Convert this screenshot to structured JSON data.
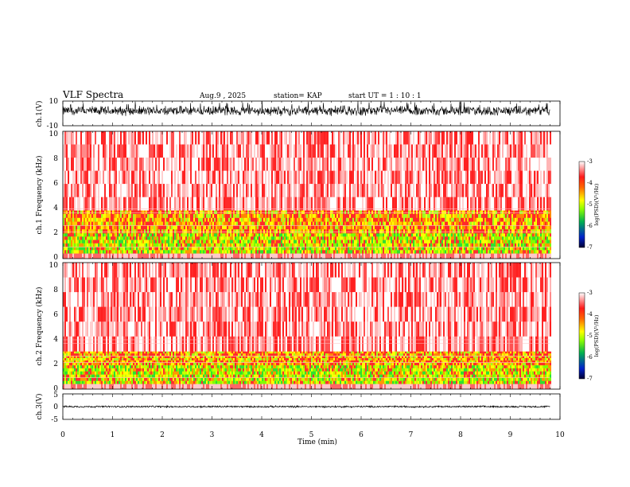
{
  "header": {
    "title": "VLF Spectra",
    "date": "Aug.9 , 2025",
    "station": "station= KAP",
    "start_ut": "start UT = 1 : 10 : 1"
  },
  "colors": {
    "spectro_scale": [
      "#001a66",
      "#0044ff",
      "#00cc44",
      "#a0ff00",
      "#ffff00",
      "#ff8800",
      "#ff2a2a",
      "#ff9a9a",
      "#ffffff"
    ]
  },
  "chart_data": [
    {
      "type": "line",
      "name": "ch1-waveform",
      "ylabel": "ch.1(V)",
      "ylim": [
        -10,
        10
      ],
      "yticks": [
        "10",
        "-10"
      ],
      "xlim": [
        0,
        10
      ],
      "x_end": 9.8,
      "level": 2.0,
      "spread": 4.5
    },
    {
      "type": "heatmap",
      "name": "ch1-spectrogram",
      "ylabel": "ch.1 Frequency (kHz)",
      "ylim": [
        0,
        10
      ],
      "yticks": [
        "0",
        "2",
        "4",
        "6",
        "8",
        "10"
      ],
      "xlim": [
        0,
        10
      ],
      "x_end": 9.8,
      "bands_khz": [
        [
          0.4,
          2.0,
          "green-yellow"
        ],
        [
          2.0,
          3.8,
          "yellow-orange"
        ],
        [
          3.8,
          10.0,
          "red-white"
        ]
      ],
      "colorbar": {
        "label": "log(PSD)(V²/Hz)",
        "range": [
          -7,
          -3
        ],
        "ticks": [
          "-3",
          "-4",
          "-5",
          "-6",
          "-7"
        ]
      }
    },
    {
      "type": "heatmap",
      "name": "ch2-spectrogram",
      "ylabel": "ch.2 Frequency (kHz)",
      "ylim": [
        0,
        10
      ],
      "yticks": [
        "0",
        "2",
        "4",
        "6",
        "8",
        "10"
      ],
      "xlim": [
        0,
        10
      ],
      "x_end": 9.8,
      "bands_khz": [
        [
          0.4,
          1.9,
          "green-yellow"
        ],
        [
          1.9,
          3.0,
          "yellow-orange"
        ],
        [
          3.0,
          10.0,
          "red-white"
        ]
      ],
      "colorbar": {
        "label": "log(PSD)(V²/Hz)",
        "range": [
          -7,
          -3
        ],
        "ticks": [
          "-3",
          "-4",
          "-5",
          "-6",
          "-7"
        ]
      }
    },
    {
      "type": "line",
      "name": "ch3-waveform",
      "ylabel": "ch.3(V)",
      "ylim": [
        -5,
        5
      ],
      "yticks": [
        "5",
        "0",
        "-5"
      ],
      "xlim": [
        0,
        10
      ],
      "x_end": 9.8,
      "level": 0.0,
      "spread": 0.4
    }
  ],
  "xaxis": {
    "label": "Time (min)",
    "ticks": [
      "0",
      "1",
      "2",
      "3",
      "4",
      "5",
      "6",
      "7",
      "8",
      "9",
      "10"
    ]
  }
}
